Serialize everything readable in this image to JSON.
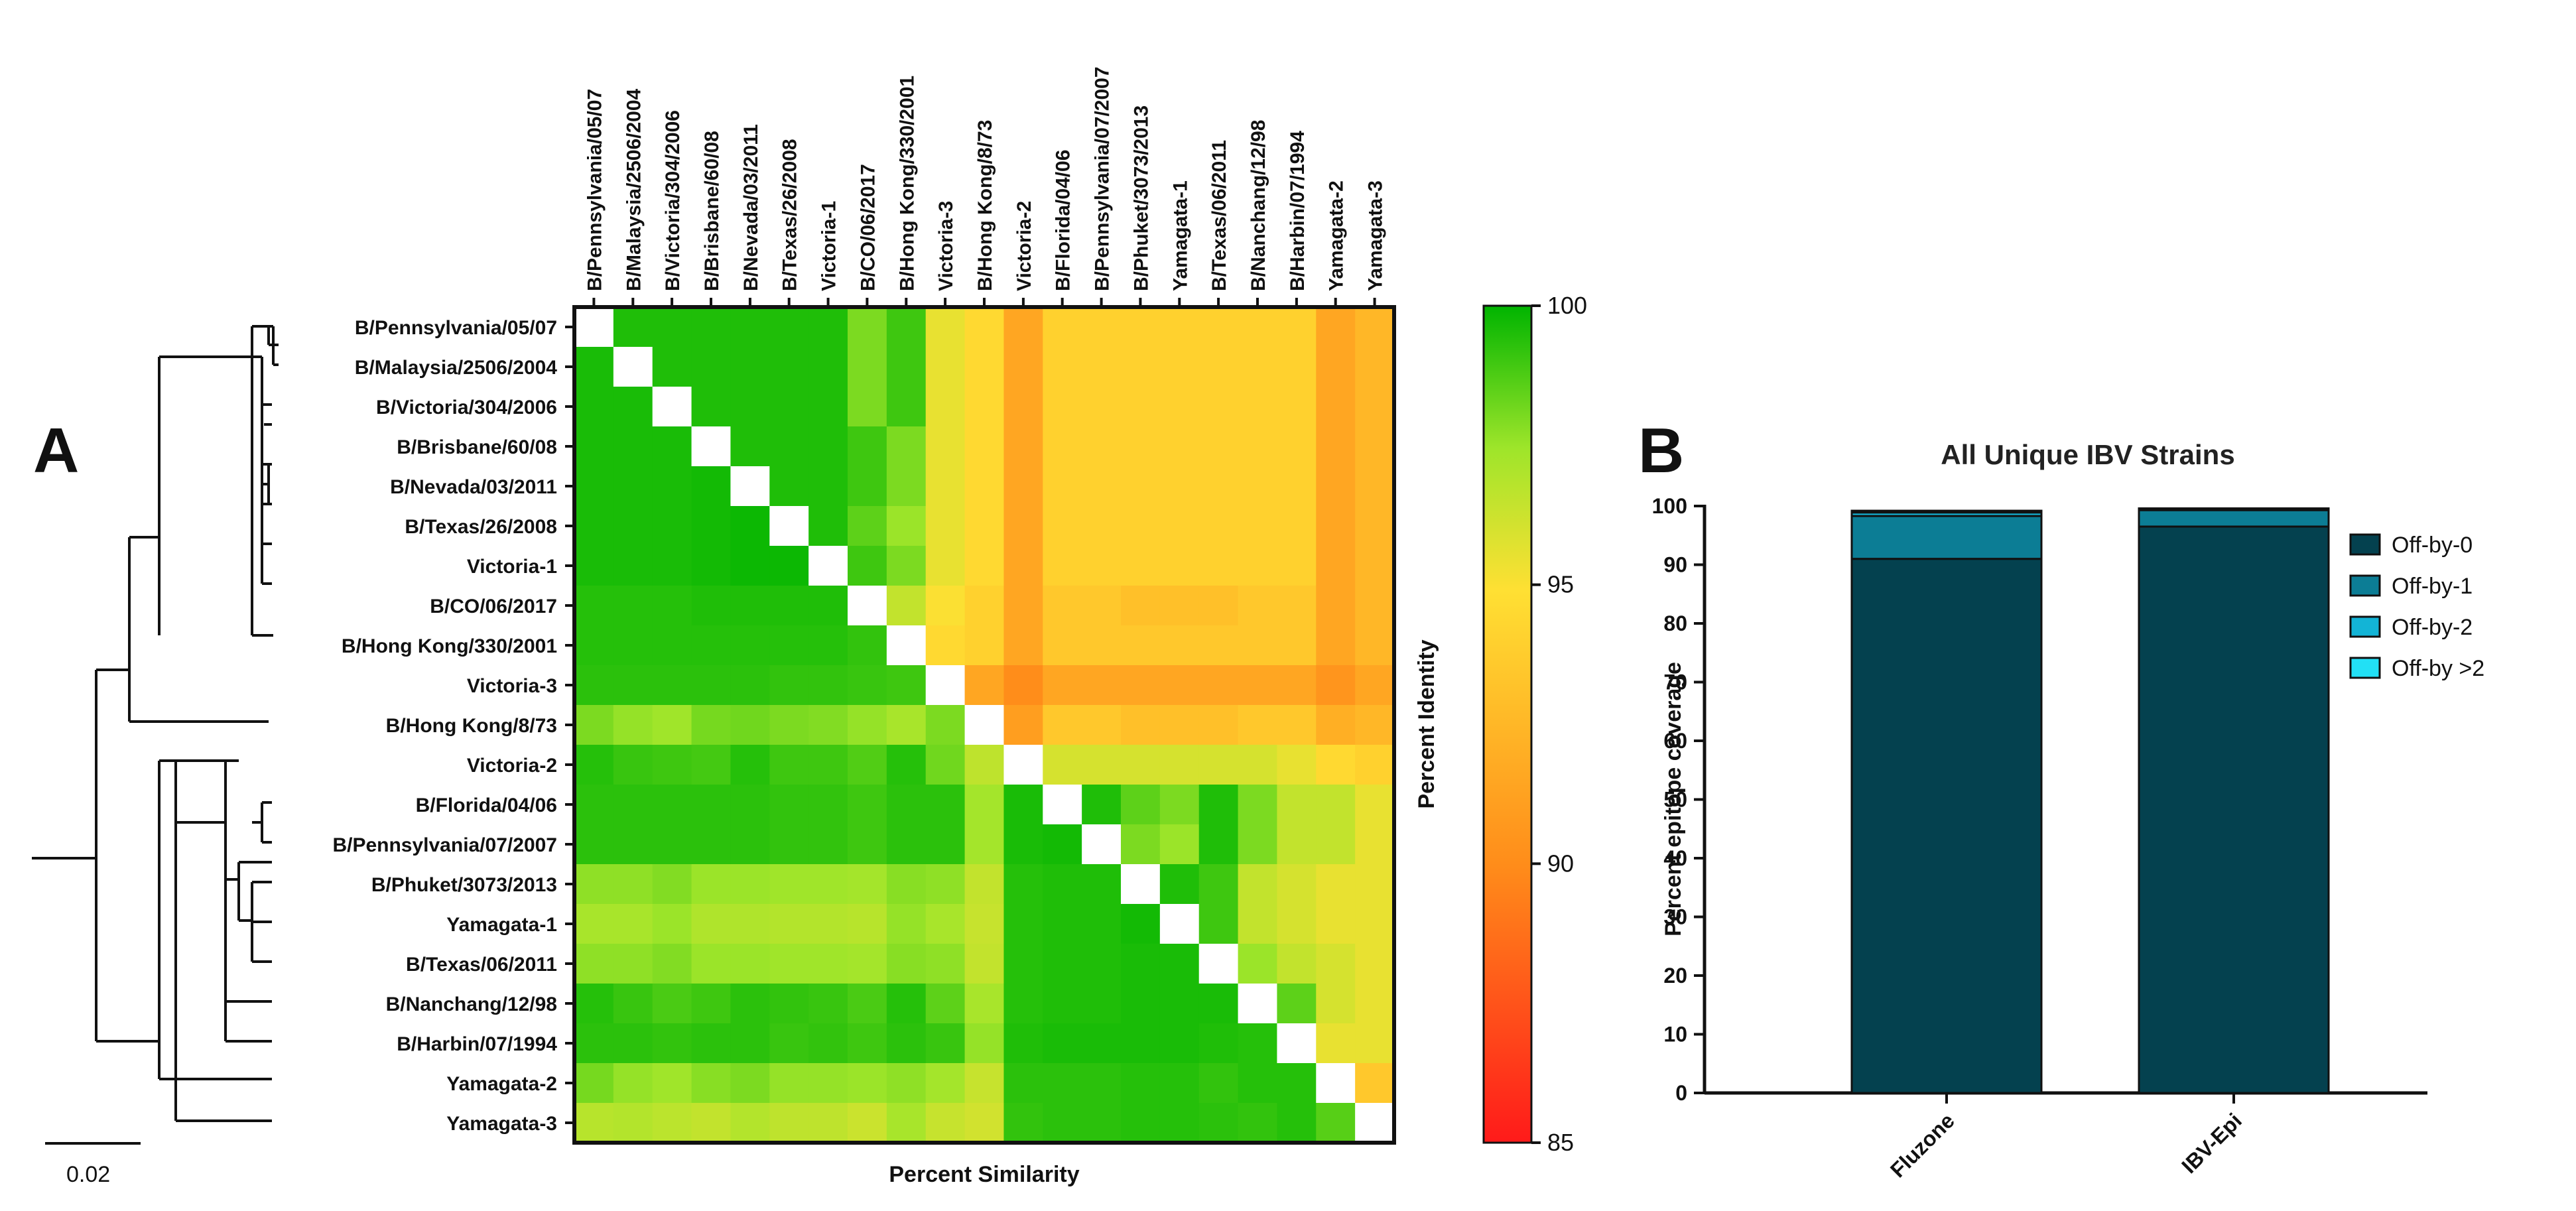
{
  "panel_a": {
    "letter": "A",
    "scale_bar_label": "0.02",
    "colorbar": {
      "title": "Percent Identity",
      "ticks": [
        "100",
        "95",
        "90",
        "85"
      ],
      "min": 85,
      "max": 100
    },
    "xlabel": "Percent Similarity"
  },
  "panel_b": {
    "letter": "B"
  },
  "chart_data": [
    {
      "type": "heatmap",
      "title": "",
      "xlabel": "Percent Similarity",
      "ylabel": "",
      "colorbar_label": "Percent Identity",
      "zlim": [
        85,
        100
      ],
      "labels": [
        "B/Pennsylvania/05/07",
        "B/Malaysia/2506/2004",
        "B/Victoria/304/2006",
        "B/Brisbane/60/08",
        "B/Nevada/03/2011",
        "B/Texas/26/2008",
        "Victoria-1",
        "B/CO/06/2017",
        "B/Hong Kong/330/2001",
        "Victoria-3",
        "B/Hong Kong/8/73",
        "Victoria-2",
        "B/Florida/04/06",
        "B/Pennsylvania/07/2007",
        "B/Phuket/3073/2013",
        "Yamagata-1",
        "B/Texas/06/2011",
        "B/Nanchang/12/98",
        "B/Harbin/07/1994",
        "Yamagata-2",
        "Yamagata-3"
      ],
      "note": "Upper triangle shows percent identity, lower triangle shows percent similarity; diagonal blank",
      "values": [
        [
          null,
          99.5,
          99.5,
          99.5,
          99.5,
          99.5,
          99.5,
          98.0,
          99.0,
          95.5,
          94.5,
          91.5,
          94.0,
          94.0,
          94.0,
          94.0,
          94.0,
          94.0,
          94.0,
          91.5,
          92.5
        ],
        [
          99.6,
          null,
          99.5,
          99.5,
          99.5,
          99.5,
          99.5,
          98.0,
          99.0,
          95.5,
          94.5,
          91.5,
          94.0,
          94.0,
          94.0,
          94.0,
          94.0,
          94.0,
          94.0,
          91.5,
          92.5
        ],
        [
          99.6,
          99.6,
          null,
          99.5,
          99.5,
          99.5,
          99.5,
          98.0,
          99.0,
          95.5,
          94.5,
          91.5,
          94.0,
          94.0,
          94.0,
          94.0,
          94.0,
          94.0,
          94.0,
          91.5,
          92.5
        ],
        [
          99.6,
          99.6,
          99.6,
          null,
          99.5,
          99.5,
          99.5,
          99.0,
          98.0,
          95.5,
          94.5,
          91.5,
          94.0,
          94.0,
          94.0,
          94.0,
          94.0,
          94.0,
          94.0,
          91.5,
          92.5
        ],
        [
          99.6,
          99.6,
          99.6,
          99.7,
          null,
          99.5,
          99.5,
          99.0,
          98.0,
          95.5,
          94.5,
          91.5,
          94.0,
          94.0,
          94.0,
          94.0,
          94.0,
          94.0,
          94.0,
          91.5,
          92.5
        ],
        [
          99.6,
          99.6,
          99.6,
          99.7,
          99.8,
          null,
          99.5,
          98.5,
          97.5,
          95.5,
          94.5,
          91.5,
          94.0,
          94.0,
          94.0,
          94.0,
          94.0,
          94.0,
          94.0,
          91.5,
          92.5
        ],
        [
          99.6,
          99.6,
          99.6,
          99.7,
          99.8,
          99.8,
          null,
          99.0,
          98.0,
          95.5,
          94.5,
          91.5,
          94.0,
          94.0,
          94.0,
          94.0,
          94.0,
          94.0,
          94.0,
          91.5,
          92.5
        ],
        [
          99.4,
          99.4,
          99.4,
          99.5,
          99.5,
          99.5,
          99.5,
          null,
          96.5,
          95.0,
          94.0,
          91.5,
          93.5,
          93.5,
          93.0,
          93.0,
          93.0,
          93.5,
          93.5,
          91.5,
          92.5
        ],
        [
          99.4,
          99.4,
          99.4,
          99.4,
          99.4,
          99.4,
          99.4,
          99.2,
          null,
          94.5,
          94.0,
          91.5,
          93.5,
          93.5,
          93.5,
          93.5,
          93.5,
          93.5,
          93.5,
          91.5,
          92.5
        ],
        [
          99.3,
          99.3,
          99.3,
          99.3,
          99.3,
          99.2,
          99.2,
          99.1,
          99.0,
          null,
          91.5,
          90.0,
          91.5,
          91.5,
          91.5,
          91.5,
          91.5,
          91.5,
          91.5,
          90.5,
          91.5
        ],
        [
          98.0,
          97.6,
          97.4,
          98.1,
          98.2,
          98.0,
          97.9,
          97.6,
          97.2,
          98.0,
          null,
          91.0,
          93.5,
          93.5,
          93.0,
          93.0,
          93.0,
          93.5,
          93.5,
          92.0,
          92.5
        ],
        [
          99.4,
          99.1,
          99.0,
          98.9,
          99.4,
          99.0,
          99.0,
          98.7,
          99.4,
          98.2,
          96.6,
          null,
          96.0,
          96.0,
          96.0,
          96.0,
          96.0,
          96.0,
          95.5,
          94.5,
          94.0
        ],
        [
          99.3,
          99.3,
          99.3,
          99.3,
          99.3,
          99.2,
          99.2,
          99.0,
          99.3,
          99.3,
          97.3,
          99.6,
          null,
          99.5,
          98.5,
          98.0,
          99.5,
          98.0,
          96.5,
          96.5,
          95.5
        ],
        [
          99.3,
          99.3,
          99.3,
          99.3,
          99.3,
          99.2,
          99.2,
          99.0,
          99.3,
          99.3,
          97.3,
          99.6,
          99.7,
          null,
          98.0,
          97.5,
          99.5,
          98.0,
          96.5,
          96.5,
          95.5
        ],
        [
          97.7,
          97.7,
          97.9,
          97.5,
          97.5,
          97.4,
          97.4,
          97.3,
          97.8,
          97.7,
          96.5,
          99.4,
          99.5,
          99.5,
          null,
          99.5,
          99.0,
          96.5,
          96.0,
          95.5,
          95.5
        ],
        [
          97.2,
          97.2,
          97.5,
          97.0,
          97.0,
          96.9,
          96.9,
          96.8,
          97.6,
          97.2,
          96.4,
          99.4,
          99.5,
          99.5,
          99.7,
          null,
          99.0,
          96.5,
          96.0,
          95.5,
          95.5
        ],
        [
          97.7,
          97.7,
          97.9,
          97.5,
          97.5,
          97.4,
          97.4,
          97.3,
          97.8,
          97.7,
          96.5,
          99.4,
          99.5,
          99.5,
          99.6,
          99.6,
          null,
          97.5,
          96.5,
          96.0,
          95.5
        ],
        [
          99.4,
          99.1,
          98.8,
          99.0,
          99.3,
          99.2,
          99.1,
          98.8,
          99.4,
          98.5,
          97.2,
          99.4,
          99.5,
          99.5,
          99.6,
          99.6,
          99.6,
          null,
          98.5,
          96.0,
          95.5
        ],
        [
          99.3,
          99.3,
          99.2,
          99.3,
          99.3,
          99.1,
          99.2,
          99.0,
          99.3,
          99.1,
          97.6,
          99.5,
          99.6,
          99.6,
          99.6,
          99.6,
          99.5,
          99.4,
          null,
          95.5,
          95.5
        ],
        [
          98.1,
          97.6,
          97.4,
          97.8,
          98.0,
          97.6,
          97.6,
          97.5,
          97.7,
          97.3,
          96.4,
          99.3,
          99.3,
          99.3,
          99.4,
          99.4,
          99.2,
          99.4,
          99.4,
          null,
          93.5
        ],
        [
          96.8,
          96.9,
          96.7,
          96.5,
          96.9,
          96.6,
          96.6,
          96.3,
          97.2,
          96.4,
          96.1,
          99.2,
          99.3,
          99.3,
          99.4,
          99.4,
          99.3,
          99.2,
          99.4,
          98.6,
          null
        ]
      ]
    },
    {
      "type": "bar",
      "stacked": true,
      "title": "All Unique IBV Strains",
      "xlabel": "",
      "ylabel": "Percent epitope coverage",
      "ylim": [
        0,
        100
      ],
      "yticks": [
        "0",
        "10",
        "20",
        "30",
        "40",
        "50",
        "60",
        "70",
        "80",
        "90",
        "100"
      ],
      "categories": [
        "Fluzone",
        "IBV-Epi"
      ],
      "legend_position": "right",
      "series": [
        {
          "name": "Off-by-0",
          "color": "#04414f",
          "values": [
            91.0,
            96.5
          ]
        },
        {
          "name": "Off-by-1",
          "color": "#0c7d95",
          "values": [
            7.3,
            2.8
          ]
        },
        {
          "name": "Off-by-2",
          "color": "#13b4d6",
          "values": [
            0.6,
            0.2
          ]
        },
        {
          "name": "Off-by >2",
          "color": "#22e0f5",
          "values": [
            0.3,
            0.1
          ]
        }
      ]
    }
  ]
}
